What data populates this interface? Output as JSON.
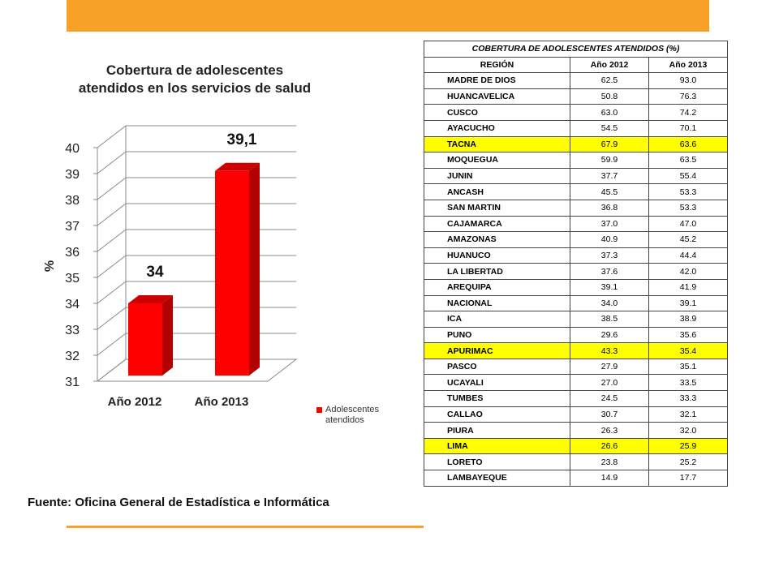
{
  "colors": {
    "top_bar": "#f7a128",
    "bottom_rule": "#f7a128",
    "bar_front": "#ff0000",
    "bar_side": "#b30000",
    "bar_top": "#cc0000",
    "highlight": "#ffff00",
    "grid": "#888888"
  },
  "chart_data": {
    "type": "bar",
    "title_lines": [
      "Cobertura de adolescentes",
      "atendidos en los servicios de salud"
    ],
    "categories": [
      "Año 2012",
      "Año 2013"
    ],
    "series": [
      {
        "name": "Adolescentes atendidos",
        "values": [
          34,
          39.1
        ]
      }
    ],
    "data_labels": [
      "34",
      "39,1"
    ],
    "ylabel": "%",
    "ylim": [
      31,
      40
    ],
    "yticks": [
      "31",
      "32",
      "33",
      "34",
      "35",
      "36",
      "37",
      "38",
      "39",
      "40"
    ],
    "grid": true,
    "legend_position": "right",
    "source": "Fuente: Oficina General de Estadística e Informática"
  },
  "table": {
    "caption": "COBERTURA DE ADOLESCENTES ATENDIDOS (%)",
    "headers": [
      "REGIÓN",
      "Año 2012",
      "Año 2013"
    ],
    "rows": [
      {
        "region": "MADRE DE DIOS",
        "y2012": "62.5",
        "y2013": "93.0",
        "highlight": false
      },
      {
        "region": "HUANCAVELICA",
        "y2012": "50.8",
        "y2013": "76.3",
        "highlight": false
      },
      {
        "region": "CUSCO",
        "y2012": "63.0",
        "y2013": "74.2",
        "highlight": false
      },
      {
        "region": "AYACUCHO",
        "y2012": "54.5",
        "y2013": "70.1",
        "highlight": false
      },
      {
        "region": "TACNA",
        "y2012": "67.9",
        "y2013": "63.6",
        "highlight": true
      },
      {
        "region": "MOQUEGUA",
        "y2012": "59.9",
        "y2013": "63.5",
        "highlight": false
      },
      {
        "region": "JUNIN",
        "y2012": "37.7",
        "y2013": "55.4",
        "highlight": false
      },
      {
        "region": "ANCASH",
        "y2012": "45.5",
        "y2013": "53.3",
        "highlight": false
      },
      {
        "region": "SAN MARTIN",
        "y2012": "36.8",
        "y2013": "53.3",
        "highlight": false
      },
      {
        "region": "CAJAMARCA",
        "y2012": "37.0",
        "y2013": "47.0",
        "highlight": false
      },
      {
        "region": "AMAZONAS",
        "y2012": "40.9",
        "y2013": "45.2",
        "highlight": false
      },
      {
        "region": "HUANUCO",
        "y2012": "37.3",
        "y2013": "44.4",
        "highlight": false
      },
      {
        "region": "LA LIBERTAD",
        "y2012": "37.6",
        "y2013": "42.0",
        "highlight": false
      },
      {
        "region": "AREQUIPA",
        "y2012": "39.1",
        "y2013": "41.9",
        "highlight": false
      },
      {
        "region": "NACIONAL",
        "y2012": "34.0",
        "y2013": "39.1",
        "highlight": false
      },
      {
        "region": "ICA",
        "y2012": "38.5",
        "y2013": "38.9",
        "highlight": false
      },
      {
        "region": "PUNO",
        "y2012": "29.6",
        "y2013": "35.6",
        "highlight": false
      },
      {
        "region": "APURIMAC",
        "y2012": "43.3",
        "y2013": "35.4",
        "highlight": true
      },
      {
        "region": "PASCO",
        "y2012": "27.9",
        "y2013": "35.1",
        "highlight": false
      },
      {
        "region": "UCAYALI",
        "y2012": "27.0",
        "y2013": "33.5",
        "highlight": false
      },
      {
        "region": "TUMBES",
        "y2012": "24.5",
        "y2013": "33.3",
        "highlight": false
      },
      {
        "region": "CALLAO",
        "y2012": "30.7",
        "y2013": "32.1",
        "highlight": false
      },
      {
        "region": "PIURA",
        "y2012": "26.3",
        "y2013": "32.0",
        "highlight": false
      },
      {
        "region": "LIMA",
        "y2012": "26.6",
        "y2013": "25.9",
        "highlight": true
      },
      {
        "region": "LORETO",
        "y2012": "23.8",
        "y2013": "25.2",
        "highlight": false
      },
      {
        "region": "LAMBAYEQUE",
        "y2012": "14.9",
        "y2013": "17.7",
        "highlight": false
      }
    ]
  }
}
